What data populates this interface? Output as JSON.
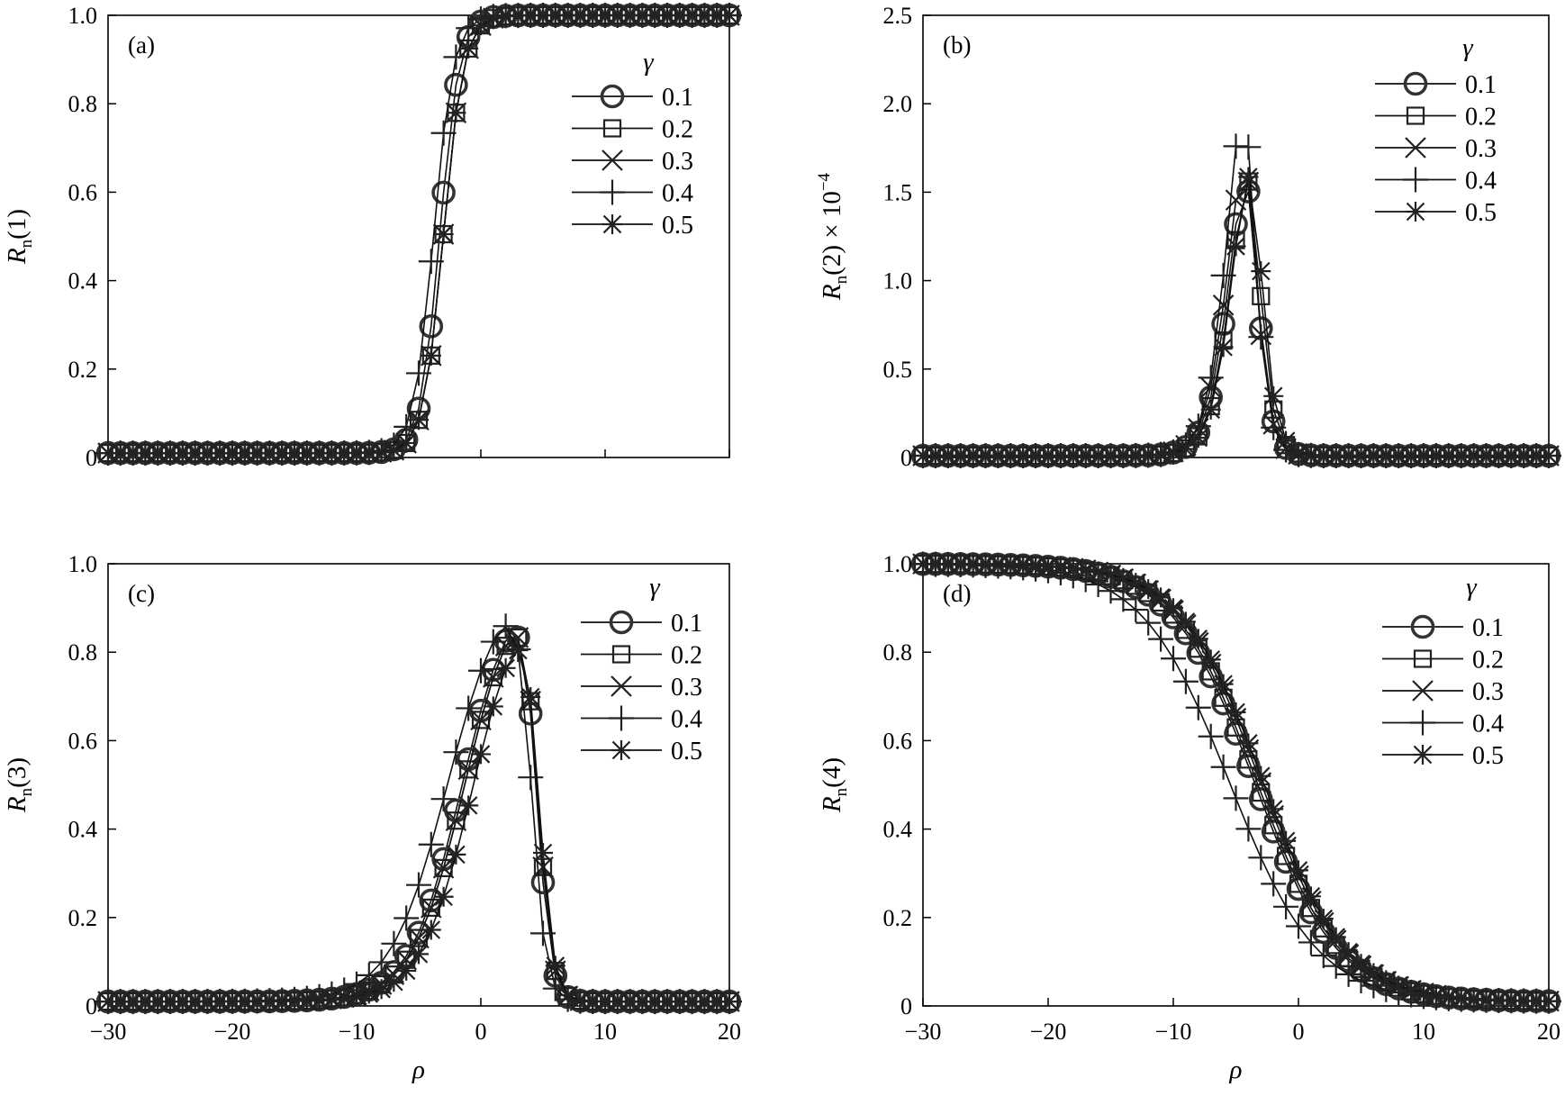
{
  "figure": {
    "x_axis_title": "ρ"
  },
  "chart_data": [
    {
      "type": "line",
      "panel_label": "(a)",
      "ylabel": {
        "base": "R",
        "subscript": "n",
        "suffix": "(1)",
        "exponent": ""
      },
      "xlabel": "",
      "xlim": [
        -30,
        20
      ],
      "ylim": [
        0,
        1.0
      ],
      "xticks": [
        -30,
        -20,
        -10,
        0,
        10,
        20
      ],
      "xtick_labels": [
        "",
        "",
        "",
        "",
        "",
        ""
      ],
      "yticks": [
        0,
        0.2,
        0.4,
        0.6,
        0.8,
        1.0
      ],
      "ytick_labels": [
        "0",
        "0.2",
        "0.4",
        "0.6",
        "0.8",
        "1.0"
      ],
      "grid": false,
      "legend": {
        "title": "γ",
        "placement": "top-right"
      },
      "marker_spacing": 1,
      "series": [
        {
          "name": "0.1",
          "marker": "circle",
          "model": {
            "kind": "sigmoid",
            "center": -3.3,
            "width": 0.78,
            "amp": 0.99,
            "base": 0.01
          }
        },
        {
          "name": "0.2",
          "marker": "square",
          "model": {
            "kind": "sigmoid",
            "center": -3.0,
            "width": 0.8,
            "amp": 0.99,
            "base": 0.01
          }
        },
        {
          "name": "0.3",
          "marker": "x",
          "model": {
            "kind": "sigmoid",
            "center": -3.0,
            "width": 0.8,
            "amp": 0.99,
            "base": 0.01
          }
        },
        {
          "name": "0.4",
          "marker": "plus",
          "model": {
            "kind": "sigmoid",
            "center": -3.8,
            "width": 0.8,
            "amp": 0.99,
            "base": 0.01
          }
        },
        {
          "name": "0.5",
          "marker": "star",
          "model": {
            "kind": "sigmoid",
            "center": -3.0,
            "width": 0.8,
            "amp": 0.99,
            "base": 0.01
          }
        }
      ]
    },
    {
      "type": "line",
      "panel_label": "(b)",
      "ylabel": {
        "base": "R",
        "subscript": "n",
        "suffix": "(2) × 10",
        "exponent": "−4"
      },
      "xlabel": "",
      "xlim": [
        -30,
        20
      ],
      "ylim": [
        0,
        2.5
      ],
      "xticks": [
        -30,
        -20,
        -10,
        0,
        10,
        20
      ],
      "xtick_labels": [
        "",
        "",
        "",
        "",
        "",
        ""
      ],
      "yticks": [
        0,
        0.5,
        1.0,
        1.5,
        2.0,
        2.5
      ],
      "ytick_labels": [
        "0",
        "0.5",
        "1.0",
        "1.5",
        "2.0",
        "2.5"
      ],
      "grid": false,
      "legend": {
        "title": "γ",
        "placement": "top-right"
      },
      "marker_spacing": 1,
      "series": [
        {
          "name": "0.1",
          "marker": "circle",
          "model": {
            "kind": "peak",
            "center": -4.2,
            "left_width": 2.0,
            "right_width": 1.3,
            "amp": 1.53,
            "base": 0.01
          }
        },
        {
          "name": "0.2",
          "marker": "square",
          "model": {
            "kind": "peak",
            "center": -4.0,
            "left_width": 2.0,
            "right_width": 1.3,
            "amp": 1.55,
            "base": 0.01
          }
        },
        {
          "name": "0.3",
          "marker": "x",
          "model": {
            "kind": "peak",
            "center": -4.3,
            "left_width": 2.0,
            "right_width": 1.3,
            "amp": 1.63,
            "base": 0.01
          }
        },
        {
          "name": "0.4",
          "marker": "plus",
          "model": {
            "kind": "peak",
            "center": -4.4,
            "left_width": 1.9,
            "right_width": 1.25,
            "amp": 1.93,
            "base": 0.01
          }
        },
        {
          "name": "0.5",
          "marker": "star",
          "model": {
            "kind": "peak",
            "center": -3.9,
            "left_width": 2.0,
            "right_width": 1.35,
            "amp": 1.58,
            "base": 0.01
          }
        }
      ]
    },
    {
      "type": "line",
      "panel_label": "(c)",
      "ylabel": {
        "base": "R",
        "subscript": "n",
        "suffix": "(3)",
        "exponent": ""
      },
      "xlabel": "ρ",
      "xlim": [
        -30,
        20
      ],
      "ylim": [
        0,
        1.0
      ],
      "xticks": [
        -30,
        -20,
        -10,
        0,
        10,
        20
      ],
      "xtick_labels": [
        "−30",
        "−20",
        "−10",
        "0",
        "10",
        "20"
      ],
      "yticks": [
        0,
        0.2,
        0.4,
        0.6,
        0.8,
        1.0
      ],
      "ytick_labels": [
        "0",
        "0.2",
        "0.4",
        "0.6",
        "0.8",
        "1.0"
      ],
      "grid": false,
      "legend": {
        "title": "γ",
        "placement": "top-right"
      },
      "marker_spacing": 1,
      "series": [
        {
          "name": "0.1",
          "marker": "circle",
          "model": {
            "kind": "rise_drop",
            "center": -1.5,
            "width": 2.1,
            "amp": 0.98,
            "cut": 4.5,
            "cut_width": 0.55,
            "base": 0.01
          }
        },
        {
          "name": "0.2",
          "marker": "square",
          "model": {
            "kind": "rise_drop",
            "center": -1.3,
            "width": 2.1,
            "amp": 0.98,
            "cut": 4.6,
            "cut_width": 0.55,
            "base": 0.01
          }
        },
        {
          "name": "0.3",
          "marker": "x",
          "model": {
            "kind": "rise_drop",
            "center": -1.3,
            "width": 2.1,
            "amp": 0.98,
            "cut": 4.6,
            "cut_width": 0.55,
            "base": 0.01
          }
        },
        {
          "name": "0.4",
          "marker": "plus",
          "model": {
            "kind": "rise_drop",
            "center": -2.7,
            "width": 2.3,
            "amp": 0.98,
            "cut": 4.1,
            "cut_width": 0.55,
            "base": 0.01
          }
        },
        {
          "name": "0.5",
          "marker": "star",
          "model": {
            "kind": "rise_drop",
            "center": -0.6,
            "width": 2.1,
            "amp": 0.98,
            "cut": 4.7,
            "cut_width": 0.55,
            "base": 0.01
          }
        }
      ]
    },
    {
      "type": "line",
      "panel_label": "(d)",
      "ylabel": {
        "base": "R",
        "subscript": "n",
        "suffix": "(4)",
        "exponent": ""
      },
      "xlabel": "ρ",
      "xlim": [
        -30,
        20
      ],
      "ylim": [
        0,
        1.0
      ],
      "xticks": [
        -30,
        -20,
        -10,
        0,
        10,
        20
      ],
      "xtick_labels": [
        "−30",
        "−20",
        "−10",
        "0",
        "10",
        "20"
      ],
      "yticks": [
        0,
        0.2,
        0.4,
        0.6,
        0.8,
        1.0
      ],
      "ytick_labels": [
        "0",
        "0.2",
        "0.4",
        "0.6",
        "0.8",
        "1.0"
      ],
      "grid": false,
      "legend": {
        "title": "γ",
        "placement": "top-right"
      },
      "marker_spacing": 1,
      "series": [
        {
          "name": "0.1",
          "marker": "circle",
          "model": {
            "kind": "falling",
            "center": -3.5,
            "width": 3.3,
            "amp": 0.99,
            "base": 0.01
          }
        },
        {
          "name": "0.2",
          "marker": "square",
          "model": {
            "kind": "falling",
            "center": -3.3,
            "width": 3.3,
            "amp": 0.99,
            "base": 0.01
          }
        },
        {
          "name": "0.3",
          "marker": "x",
          "model": {
            "kind": "falling",
            "center": -3.0,
            "width": 3.3,
            "amp": 0.99,
            "base": 0.01
          }
        },
        {
          "name": "0.4",
          "marker": "plus",
          "model": {
            "kind": "falling",
            "center": -5.5,
            "width": 3.5,
            "amp": 0.99,
            "base": 0.01
          }
        },
        {
          "name": "0.5",
          "marker": "star",
          "model": {
            "kind": "falling",
            "center": -2.8,
            "width": 3.3,
            "amp": 0.99,
            "base": 0.01
          }
        }
      ]
    }
  ]
}
